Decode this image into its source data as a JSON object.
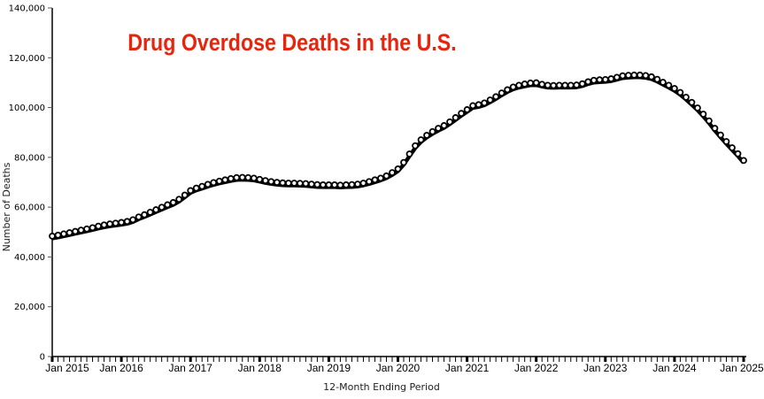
{
  "chart_data": {
    "type": "line",
    "title": "Drug Overdose Deaths in the U.S.",
    "xlabel": "12-Month Ending Period",
    "ylabel": "Number of Deaths",
    "ylim": [
      0,
      140000
    ],
    "y_ticks": [
      "0",
      "20,000",
      "40,000",
      "60,000",
      "80,000",
      "100,000",
      "120,000",
      "140,000"
    ],
    "y_tick_values": [
      0,
      20000,
      40000,
      60000,
      80000,
      100000,
      120000,
      140000
    ],
    "x_tick_labels": [
      "Jan 2015",
      "Jan 2016",
      "Jan 2017",
      "Jan 2018",
      "Jan 2019",
      "Jan 2020",
      "Jan 2021",
      "Jan 2022",
      "Jan 2023",
      "Jan 2024",
      "Jan 2025"
    ],
    "x_start": "Jan 2015",
    "x_interval": "monthly",
    "grid": false,
    "markers": "open circles",
    "line_color": "#000000",
    "title_color": "#e5250d",
    "values": [
      48000,
      48400,
      48900,
      49400,
      49900,
      50400,
      50900,
      51400,
      52000,
      52500,
      52900,
      53200,
      53500,
      53900,
      54600,
      55700,
      56600,
      57600,
      58600,
      59600,
      60600,
      61500,
      62800,
      64500,
      66300,
      67300,
      68000,
      68800,
      69500,
      70100,
      70600,
      71100,
      71500,
      71600,
      71500,
      71300,
      70800,
      70300,
      69900,
      69600,
      69400,
      69300,
      69300,
      69200,
      69100,
      68900,
      68700,
      68600,
      68600,
      68600,
      68500,
      68600,
      68700,
      68900,
      69300,
      69900,
      70600,
      71300,
      72200,
      73500,
      75000,
      77600,
      81000,
      84300,
      86700,
      88500,
      90000,
      91300,
      92400,
      93900,
      95600,
      97300,
      98800,
      100400,
      100800,
      101500,
      102700,
      104000,
      105500,
      106800,
      107900,
      108600,
      109100,
      109500,
      109600,
      109000,
      108600,
      108500,
      108600,
      108600,
      108600,
      108700,
      109200,
      110000,
      110600,
      110800,
      110900,
      111200,
      111800,
      112400,
      112600,
      112700,
      112700,
      112500,
      112000,
      111000,
      109800,
      108600,
      107300,
      105700,
      103800,
      101700,
      99500,
      97000,
      94300,
      91300,
      88600,
      86000,
      83500,
      81100,
      78400
    ]
  }
}
